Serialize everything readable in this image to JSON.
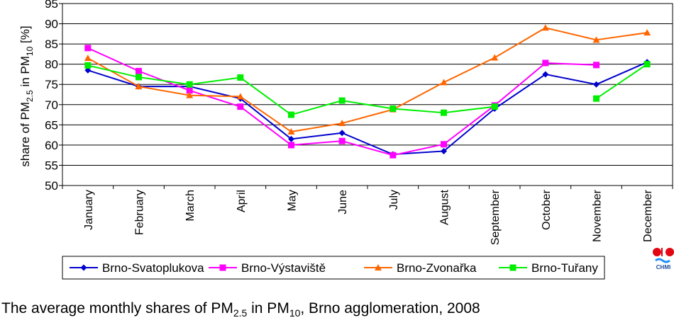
{
  "chart_data": {
    "type": "line",
    "title": "",
    "ylabel": "share of PM2.5 in PM10 [%]",
    "xlabel": "",
    "ylim": [
      50,
      95
    ],
    "yticks": [
      50,
      55,
      60,
      65,
      70,
      75,
      80,
      85,
      90,
      95
    ],
    "grid": true,
    "legend": "bottom",
    "categories": [
      "January",
      "February",
      "March",
      "April",
      "May",
      "June",
      "July",
      "August",
      "September",
      "October",
      "November",
      "December"
    ],
    "series": [
      {
        "name": "Brno-Svatoplukova",
        "color": "#0000cc",
        "marker": "diamond",
        "values": [
          78.5,
          74.5,
          74.5,
          71.5,
          61.5,
          63,
          57.7,
          58.5,
          69,
          77.5,
          75,
          80.5
        ]
      },
      {
        "name": "Brno-Výstaviště",
        "color": "#ff00ff",
        "marker": "square",
        "values": [
          84,
          78.3,
          73.5,
          69.5,
          60,
          61,
          57.5,
          60.2,
          69.8,
          80.3,
          79.8,
          null
        ]
      },
      {
        "name": "Brno-Zvonařka",
        "color": "#ff6600",
        "marker": "triangle",
        "values": [
          81.5,
          74.5,
          72.3,
          72,
          63.3,
          65.4,
          68.8,
          75.5,
          81.6,
          89,
          86,
          87.8
        ]
      },
      {
        "name": "Brno-Tuřany",
        "color": "#00ee00",
        "marker": "square",
        "values": [
          79.7,
          76.8,
          75,
          76.7,
          67.5,
          71,
          69,
          68,
          69.5,
          null,
          71.5,
          80
        ]
      }
    ]
  },
  "caption": {
    "text_before": "The average monthly shares of PM",
    "sub1": "2.5",
    "text_middle": " in PM",
    "sub2": "10",
    "text_after": ", Brno agglomeration, 2008"
  },
  "logo": {
    "label": "CHMI"
  }
}
